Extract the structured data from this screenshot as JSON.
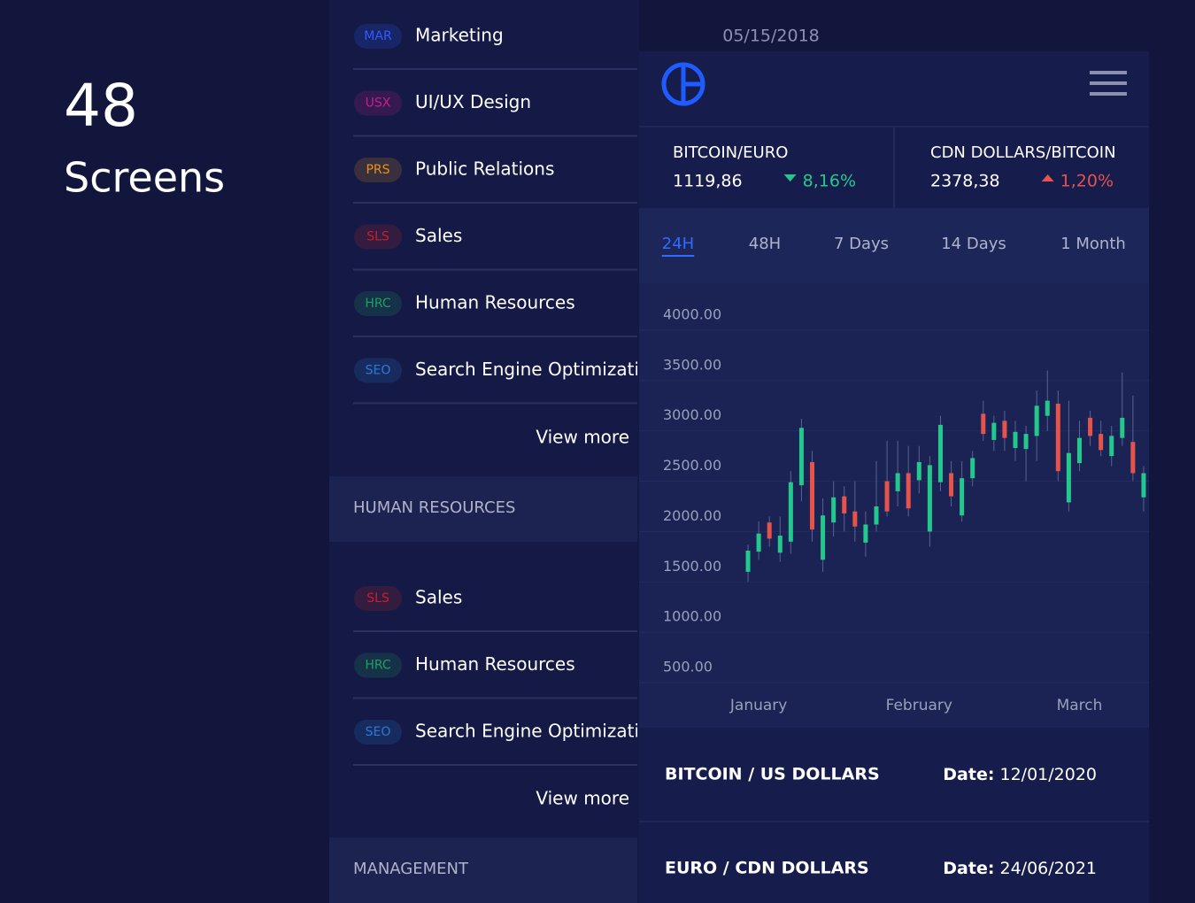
{
  "hero": {
    "count": "48",
    "label": "Screens"
  },
  "menu": {
    "items": [
      {
        "code": "MAR",
        "label": "Marketing",
        "color": "#2f5bff"
      },
      {
        "code": "USX",
        "label": "UI/UX Design",
        "color": "#c81e8c"
      },
      {
        "code": "PRS",
        "label": "Public Relations",
        "color": "#e8921e"
      },
      {
        "code": "SLS",
        "label": "Sales",
        "color": "#c8202a"
      },
      {
        "code": "HRC",
        "label": "Human Resources",
        "color": "#20a060"
      },
      {
        "code": "SEO",
        "label": "Search Engine Optimization",
        "color": "#2d7ad6"
      }
    ],
    "more": "View more"
  },
  "sections": [
    {
      "title": "HUMAN RESOURCES",
      "items": [
        {
          "code": "SLS",
          "label": "Sales",
          "color": "#c8202a"
        },
        {
          "code": "HRC",
          "label": "Human Resources",
          "color": "#20a060"
        },
        {
          "code": "SEO",
          "label": "Search Engine Optimization",
          "color": "#2d7ad6"
        }
      ],
      "more": "View more"
    },
    {
      "title": "MANAGEMENT"
    }
  ],
  "dashboard": {
    "date": "05/15/2018",
    "tickers": [
      {
        "pair": "BITCOIN/EURO",
        "price": "1119,86",
        "change": "8,16%",
        "direction": "down",
        "color": "#23c98c"
      },
      {
        "pair": "CDN DOLLARS/BITCOIN",
        "price": "2378,38",
        "change": "1,20%",
        "direction": "up",
        "color": "#e5534b"
      }
    ],
    "tabs": [
      "24H",
      "48H",
      "7 Days",
      "14 Days",
      "1 Month"
    ],
    "active_tab": 0,
    "pairs": [
      {
        "pair": "BITCOIN / US DOLLARS",
        "date_label": "Date:",
        "date": "12/01/2020"
      },
      {
        "pair": "EURO / CDN DOLLARS",
        "date_label": "Date:",
        "date": "24/06/2021"
      }
    ]
  },
  "chart_data": {
    "type": "candlestick",
    "categories": [
      null,
      "January",
      null,
      null,
      null,
      null,
      null,
      null,
      null,
      null,
      null,
      null,
      null,
      null,
      null,
      null,
      "February",
      null,
      null,
      null,
      null,
      null,
      null,
      null,
      null,
      null,
      null,
      null,
      null,
      null,
      null,
      "March",
      null,
      null,
      null,
      null,
      null,
      null
    ],
    "open": [
      1600,
      1800,
      2090,
      1790,
      1900,
      2460,
      2690,
      1720,
      2090,
      2350,
      2200,
      1890,
      2070,
      2500,
      2400,
      2580,
      2510,
      2000,
      2490,
      2580,
      2160,
      2530,
      3170,
      2910,
      3100,
      2830,
      2820,
      2950,
      3150,
      3270,
      2290,
      2680,
      3130,
      2970,
      2750,
      2930,
      2890,
      2340
    ],
    "high": [
      1870,
      2100,
      2150,
      2150,
      2600,
      3120,
      2800,
      2330,
      2500,
      2450,
      2500,
      2200,
      2700,
      2900,
      2900,
      2850,
      2850,
      2750,
      3150,
      2700,
      2700,
      2800,
      3300,
      3150,
      3200,
      3100,
      3050,
      3400,
      3600,
      3400,
      3300,
      3100,
      3200,
      3100,
      3050,
      3580,
      3350,
      2650
    ],
    "low": [
      1500,
      1720,
      1850,
      1700,
      1780,
      2300,
      1900,
      1600,
      1950,
      2000,
      1900,
      1750,
      2000,
      2150,
      2250,
      2150,
      2380,
      1850,
      2400,
      2250,
      2100,
      2450,
      2900,
      2800,
      2800,
      2700,
      2500,
      2700,
      3000,
      2500,
      2200,
      2600,
      2850,
      2750,
      2650,
      2850,
      2500,
      2200
    ],
    "close": [
      1810,
      1980,
      1930,
      1960,
      2490,
      3030,
      2020,
      2160,
      2340,
      2180,
      2050,
      2070,
      2250,
      2200,
      2580,
      2230,
      2690,
      2660,
      3060,
      2350,
      2530,
      2730,
      2970,
      3080,
      2930,
      2990,
      2970,
      3250,
      3300,
      2600,
      2780,
      2930,
      2950,
      2810,
      2950,
      3130,
      2580,
      2580
    ],
    "up_color": "#23c98c",
    "down_color": "#e5534b",
    "ylim": [
      500,
      4000
    ],
    "yticks": [
      {
        "value": 4000,
        "label": "4000.00"
      },
      {
        "value": 3500,
        "label": "3500.00"
      },
      {
        "value": 3000,
        "label": "3000.00"
      },
      {
        "value": 2500,
        "label": "2500.00"
      },
      {
        "value": 2000,
        "label": "2000.00"
      },
      {
        "value": 1500,
        "label": "1500.00"
      },
      {
        "value": 1000,
        "label": "1000.00"
      },
      {
        "value": 500,
        "label": "500.00"
      }
    ],
    "grid": true
  }
}
